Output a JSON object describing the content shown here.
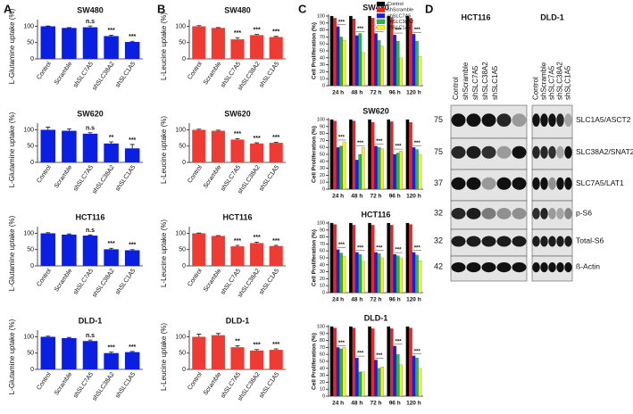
{
  "panel_labels": [
    "A",
    "B",
    "C",
    "D"
  ],
  "chart_data": [
    {
      "type": "bar",
      "title": "SW480",
      "ylabel": "L-Glutamine uptake (%)",
      "color": "#0b1fe0",
      "categories": [
        "Control",
        "Scramble",
        "shSLC7A5",
        "shSLC38A2",
        "shSLC1A5"
      ],
      "values": [
        100,
        95,
        97,
        70,
        52
      ],
      "errors": [
        1,
        1,
        4,
        3,
        2
      ],
      "annotations": [
        null,
        null,
        "n.s",
        "***",
        "***"
      ],
      "ylim": [
        0,
        115
      ],
      "yticks": [
        0,
        50,
        100
      ]
    },
    {
      "type": "bar",
      "title": "SW620",
      "ylabel": "L-Glutamine uptake (%)",
      "color": "#0b1fe0",
      "categories": [
        "Control",
        "Scramble",
        "shSLC7A5",
        "shSLC38A2",
        "shSLC1A5"
      ],
      "values": [
        100,
        97,
        88,
        58,
        43
      ],
      "errors": [
        8,
        6,
        3,
        5,
        12
      ],
      "annotations": [
        null,
        null,
        "n.s",
        "**",
        "***"
      ],
      "ylim": [
        0,
        115
      ],
      "yticks": [
        0,
        50,
        100
      ]
    },
    {
      "type": "bar",
      "title": "HCT116",
      "ylabel": "L-Glutamine uptake (%)",
      "color": "#0b1fe0",
      "categories": [
        "Control",
        "Scramble",
        "shSLC7A5",
        "shSLC38A2",
        "shSLC1A5"
      ],
      "values": [
        100,
        96,
        93,
        51,
        48
      ],
      "errors": [
        2,
        2,
        2,
        3,
        2
      ],
      "annotations": [
        null,
        null,
        "n.s",
        "***",
        "***"
      ],
      "ylim": [
        0,
        115
      ],
      "yticks": [
        0,
        50,
        100
      ]
    },
    {
      "type": "bar",
      "title": "DLD-1",
      "ylabel": "L-Glutamine uptake (%)",
      "color": "#0b1fe0",
      "categories": [
        "Control",
        "Scramble",
        "shSLC7A5",
        "shSLC38A2",
        "shSLC1A5"
      ],
      "values": [
        100,
        96,
        87,
        50,
        53
      ],
      "errors": [
        2,
        2,
        3,
        3,
        2
      ],
      "annotations": [
        null,
        null,
        "n.s",
        "***",
        "***"
      ],
      "ylim": [
        0,
        115
      ],
      "yticks": [
        0,
        50,
        100
      ]
    },
    {
      "type": "bar",
      "title": "SW480",
      "ylabel": "L-Leucine uptake (%)",
      "color": "#ee3b34",
      "categories": [
        "Control",
        "Scramble",
        "shSLC7A5",
        "shSLC38A2",
        "shSLC1A5"
      ],
      "values": [
        100,
        95,
        60,
        73,
        67
      ],
      "errors": [
        2,
        1,
        5,
        2,
        2
      ],
      "annotations": [
        null,
        null,
        "***",
        "***",
        "***"
      ],
      "ylim": [
        0,
        115
      ],
      "yticks": [
        0,
        50,
        100
      ]
    },
    {
      "type": "bar",
      "title": "SW620",
      "ylabel": "L-Leucine uptake (%)",
      "color": "#ee3b34",
      "categories": [
        "Control",
        "Scramble",
        "shSLC7A5",
        "shSLC38A2",
        "shSLC1A5"
      ],
      "values": [
        100,
        97,
        70,
        58,
        60
      ],
      "errors": [
        2,
        2,
        3,
        2,
        2
      ],
      "annotations": [
        null,
        null,
        "***",
        "***",
        "***"
      ],
      "ylim": [
        0,
        115
      ],
      "yticks": [
        0,
        50,
        100
      ]
    },
    {
      "type": "bar",
      "title": "HCT116",
      "ylabel": "L-Leucine uptake (%)",
      "color": "#ee3b34",
      "categories": [
        "Control",
        "Scramble",
        "shSLC7A5",
        "shSLC38A2",
        "shSLC1A5"
      ],
      "values": [
        100,
        92,
        60,
        70,
        61
      ],
      "errors": [
        1,
        1,
        3,
        3,
        2
      ],
      "annotations": [
        null,
        null,
        "***",
        "***",
        "***"
      ],
      "ylim": [
        0,
        115
      ],
      "yticks": [
        0,
        50,
        100
      ]
    },
    {
      "type": "bar",
      "title": "DLD-1",
      "ylabel": "L-Leucine uptake (%)",
      "color": "#ee3b34",
      "categories": [
        "Control",
        "Scramble",
        "shSLC7A5",
        "shSLC38A2",
        "shSLC1A5"
      ],
      "values": [
        100,
        105,
        68,
        58,
        60
      ],
      "errors": [
        8,
        5,
        4,
        3,
        3
      ],
      "annotations": [
        null,
        null,
        "**",
        "***",
        "***"
      ],
      "ylim": [
        0,
        115
      ],
      "yticks": [
        0,
        50,
        100
      ]
    },
    {
      "type": "bar",
      "title": "SW480",
      "ylabel": "Cell Proliferation (%)",
      "legend": true,
      "categories": [
        "24 h",
        "48 h",
        "72 h",
        "96 h",
        "120 h"
      ],
      "series": [
        {
          "name": "Control",
          "color": "#000000",
          "values": [
            100,
            100,
            100,
            100,
            100
          ]
        },
        {
          "name": "shScramble",
          "color": "#e8262b",
          "values": [
            97,
            96,
            97,
            98,
            97
          ]
        },
        {
          "name": "shSLC7A5",
          "color": "#1420e8",
          "values": [
            85,
            72,
            75,
            73,
            74
          ]
        },
        {
          "name": "shSLC38A2",
          "color": "#2fb34a",
          "values": [
            70,
            75,
            65,
            64,
            64
          ]
        },
        {
          "name": "shSLC1A5",
          "color": "#f2ee3a",
          "values": [
            65,
            48,
            57,
            40,
            42
          ]
        }
      ],
      "annotations": [
        "***",
        "***",
        "***",
        "***",
        "***"
      ],
      "ylim": [
        0,
        100
      ],
      "yticks": [
        0,
        10,
        20,
        30,
        40,
        50,
        60,
        70,
        80,
        90,
        100
      ]
    },
    {
      "type": "bar",
      "title": "SW620",
      "ylabel": "Cell Proliferation (%)",
      "categories": [
        "24 h",
        "48 h",
        "72 h",
        "96 h",
        "120 h"
      ],
      "series": [
        {
          "name": "Control",
          "color": "#000000",
          "values": [
            100,
            100,
            100,
            100,
            100
          ]
        },
        {
          "name": "shScramble",
          "color": "#e8262b",
          "values": [
            98,
            98,
            96,
            97,
            96
          ]
        },
        {
          "name": "shSLC7A5",
          "color": "#1420e8",
          "values": [
            60,
            42,
            62,
            50,
            60
          ]
        },
        {
          "name": "shSLC38A2",
          "color": "#2fb34a",
          "values": [
            62,
            50,
            60,
            52,
            57
          ]
        },
        {
          "name": "shSLC1A5",
          "color": "#f2ee3a",
          "values": [
            68,
            60,
            58,
            55,
            50
          ]
        }
      ],
      "annotations": [
        "***",
        "***",
        "***",
        "***",
        "***"
      ],
      "ylim": [
        0,
        100
      ],
      "yticks": [
        0,
        10,
        20,
        30,
        40,
        50,
        60,
        70,
        80,
        90,
        100
      ]
    },
    {
      "type": "bar",
      "title": "HCT116",
      "ylabel": "Cell Proliferation (%)",
      "categories": [
        "24 h",
        "48 h",
        "72 h",
        "96 h",
        "120 h"
      ],
      "series": [
        {
          "name": "Control",
          "color": "#000000",
          "values": [
            100,
            100,
            100,
            100,
            100
          ]
        },
        {
          "name": "shScramble",
          "color": "#e8262b",
          "values": [
            98,
            97,
            97,
            97,
            98
          ]
        },
        {
          "name": "shSLC7A5",
          "color": "#1420e8",
          "values": [
            62,
            58,
            58,
            55,
            58
          ]
        },
        {
          "name": "shSLC38A2",
          "color": "#2fb34a",
          "values": [
            57,
            55,
            56,
            53,
            54
          ]
        },
        {
          "name": "shSLC1A5",
          "color": "#f2ee3a",
          "values": [
            52,
            45,
            50,
            50,
            46
          ]
        }
      ],
      "annotations": [
        "***",
        "***",
        "***",
        "***",
        "***"
      ],
      "ylim": [
        0,
        100
      ],
      "yticks": [
        0,
        10,
        20,
        30,
        40,
        50,
        60,
        70,
        80,
        90,
        100
      ]
    },
    {
      "type": "bar",
      "title": "DLD-1",
      "ylabel": "Cell Proliferation (%)",
      "categories": [
        "24 h",
        "48 h",
        "72 h",
        "96 h",
        "120 h"
      ],
      "series": [
        {
          "name": "Control",
          "color": "#000000",
          "values": [
            100,
            100,
            100,
            100,
            100
          ]
        },
        {
          "name": "shScramble",
          "color": "#e8262b",
          "values": [
            98,
            98,
            97,
            97,
            98
          ]
        },
        {
          "name": "shSLC7A5",
          "color": "#1420e8",
          "values": [
            70,
            55,
            52,
            72,
            58
          ]
        },
        {
          "name": "shSLC38A2",
          "color": "#2fb34a",
          "values": [
            68,
            35,
            40,
            60,
            55
          ]
        },
        {
          "name": "shSLC1A5",
          "color": "#f2ee3a",
          "values": [
            70,
            35,
            42,
            45,
            40
          ]
        }
      ],
      "annotations": [
        "***",
        "***",
        "***",
        "***",
        "***"
      ],
      "ylim": [
        0,
        100
      ],
      "yticks": [
        0,
        10,
        20,
        30,
        40,
        50,
        60,
        70,
        80,
        90,
        100
      ]
    }
  ],
  "blot": {
    "cell_lines": [
      "HCT116",
      "DLD-1"
    ],
    "lanes": [
      "Control",
      "shScramble",
      "shSLC7A5",
      "shSLC38A2",
      "shSLC1A5"
    ],
    "rows": [
      {
        "marker": 75,
        "label": "SLC1A5/ASCT2"
      },
      {
        "marker": 75,
        "label": "SLC38A2/SNAT2"
      },
      {
        "marker": 37,
        "label": "SLC7A5/LAT1"
      },
      {
        "marker": 32,
        "label": "p-S6"
      },
      {
        "marker": 32,
        "label": "Total-S6"
      },
      {
        "marker": 42,
        "label": "ß-Actin"
      }
    ]
  }
}
